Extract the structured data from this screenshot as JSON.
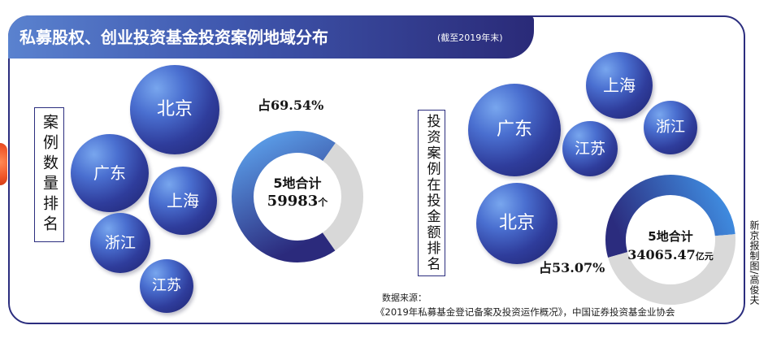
{
  "header": {
    "title": "私募股权、创业投资基金投资案例地域分布",
    "date_note": "(截至2019年末)"
  },
  "left_panel": {
    "label": "案例数量排名",
    "regions": [
      "北京",
      "广东",
      "上海",
      "浙江",
      "江苏"
    ]
  },
  "right_panel": {
    "label": "投资案例在投金额排名",
    "regions": [
      "广东",
      "北京",
      "上海",
      "江苏",
      "浙江"
    ]
  },
  "chart_data": [
    {
      "type": "pie",
      "donut": true,
      "values": [
        69.54,
        30.46
      ],
      "share_label": "占69.54%",
      "center_title": "5地合计",
      "center_value": "59983",
      "center_unit": "个",
      "colors": {
        "share_light": "#5a9be6",
        "share_dark": "#2b2a7c",
        "rest": "#d8d8d8"
      }
    },
    {
      "type": "pie",
      "donut": true,
      "values": [
        53.07,
        46.93
      ],
      "share_label": "占53.07%",
      "center_title": "5地合计",
      "center_value": "34065.47",
      "center_unit": "亿元",
      "colors": {
        "share_light": "#3f8ade",
        "share_dark": "#2b2c7e",
        "rest": "#d9d9d9"
      }
    }
  ],
  "source": {
    "label": "数据来源：",
    "text": "《2019年私募基金登记备案及投资运作概况》，中国证券投资基金业协会"
  },
  "credit": "新京报制图/高俊夫",
  "colors": {
    "frame": "#2b2d7e",
    "title_bar_light": "#5a82cf",
    "title_bar_dark": "#2a2a78",
    "bubble_light": "#78a6ee",
    "bubble_dark": "#1f236e",
    "accent_orange": "#f0562a"
  }
}
